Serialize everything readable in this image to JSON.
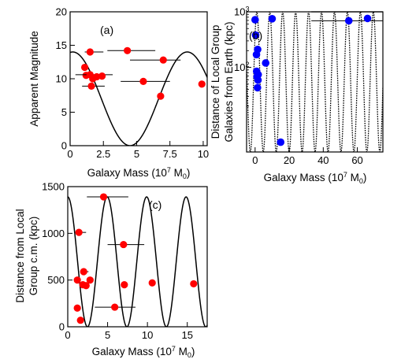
{
  "chart_data": [
    {
      "id": "a",
      "type": "scatter",
      "panel_label": "(a)",
      "xlabel_parts": [
        "Galaxy Mass (10",
        "7",
        " M",
        "0",
        ")"
      ],
      "ylabel": "Apparent Magnitude",
      "xlim": [
        0,
        10.3
      ],
      "ylim": [
        0,
        20
      ],
      "xticks": [
        0,
        2.5,
        5,
        7.5,
        10
      ],
      "xtick_labels": [
        "0",
        "2.5",
        "5",
        "7.5",
        "10"
      ],
      "yticks": [
        0,
        5,
        10,
        15,
        20
      ],
      "ytick_labels": [
        "0",
        "5",
        "10",
        "15",
        "20"
      ],
      "grid": false,
      "marker_color": "#ff0000",
      "curve_color": "#000000",
      "points": [
        {
          "x": 1.1,
          "y": 11.7
        },
        {
          "x": 1.2,
          "y": 10.5
        },
        {
          "x": 1.5,
          "y": 14.0,
          "xerr": [
            1.1,
            2.5
          ]
        },
        {
          "x": 1.5,
          "y": 10.6,
          "xerr": [
            0.4,
            3.2
          ]
        },
        {
          "x": 1.7,
          "y": 10.0
        },
        {
          "x": 1.6,
          "y": 8.9,
          "xerr": [
            0.9,
            2.6
          ]
        },
        {
          "x": 2.0,
          "y": 10.3
        },
        {
          "x": 2.4,
          "y": 10.4
        },
        {
          "x": 4.3,
          "y": 14.2,
          "xerr": [
            2.8,
            6.4
          ]
        },
        {
          "x": 5.5,
          "y": 9.6,
          "xerr": [
            3.8,
            7.5
          ]
        },
        {
          "x": 6.8,
          "y": 7.4
        },
        {
          "x": 7.0,
          "y": 12.8,
          "xerr": [
            4.5,
            8.3
          ]
        },
        {
          "x": 9.9,
          "y": 9.2
        }
      ],
      "curve": {
        "form": "cosine",
        "mean": 7.0,
        "amplitude": 7.0,
        "period": 8.6,
        "peak_x": 0.2
      }
    },
    {
      "id": "b",
      "type": "scatter",
      "panel_label": "(b)",
      "xlabel_parts": [
        "Galaxy Mass (10",
        "7",
        " M",
        "0",
        ")"
      ],
      "ylabel_lines": [
        "Distance of Local Group",
        "Galaxies from Earth (kpc)"
      ],
      "xlim": [
        -5,
        75
      ],
      "yscale": "log",
      "ylim": [
        3,
        1000
      ],
      "xticks": [
        0,
        20,
        40,
        60
      ],
      "xtick_labels": [
        "0",
        "20",
        "40",
        "60"
      ],
      "ytick_label_parts": [
        {
          "value": 100,
          "base": "10",
          "exp": "2"
        },
        {
          "value": 1000,
          "base": "10",
          "exp": "3"
        }
      ],
      "grid": false,
      "marker_color": "#0000ff",
      "curve_color": "#000000",
      "points": [
        {
          "x": 0.0,
          "y": 720
        },
        {
          "x": 0.3,
          "y": 380
        },
        {
          "x": 0.8,
          "y": 170
        },
        {
          "x": 1.5,
          "y": 210
        },
        {
          "x": 0.9,
          "y": 85
        },
        {
          "x": 1.8,
          "y": 74
        },
        {
          "x": 1.1,
          "y": 68
        },
        {
          "x": 1.7,
          "y": 59
        },
        {
          "x": 1.4,
          "y": 43
        },
        {
          "x": 6.2,
          "y": 120
        },
        {
          "x": 10.0,
          "y": 750
        },
        {
          "x": 15.0,
          "y": 4.5
        },
        {
          "x": 55.0,
          "y": 690,
          "xerr": [
            33,
            75
          ]
        },
        {
          "x": 66.0,
          "y": 760
        }
      ],
      "curve": {
        "form": "cosine",
        "ymin": 3.0,
        "ymax": 1000,
        "period": 7.6,
        "peak_x": 1.0,
        "dotted_below_x": 33
      }
    },
    {
      "id": "c",
      "type": "scatter",
      "panel_label": "(c)",
      "xlabel_parts": [
        "Galaxy Mass (10",
        "7",
        " M",
        "0",
        ")"
      ],
      "ylabel_lines": [
        "Distance from Local",
        "Group c.m. (kpc)"
      ],
      "xlim": [
        0,
        17.5
      ],
      "ylim": [
        0,
        1500
      ],
      "xticks": [
        0,
        5,
        10,
        15
      ],
      "xtick_labels": [
        "0",
        "5",
        "10",
        "15"
      ],
      "yticks": [
        0,
        500,
        1000,
        1500
      ],
      "ytick_labels": [
        "0",
        "500",
        "1000",
        "1500"
      ],
      "grid": false,
      "marker_color": "#ff0000",
      "curve_color": "#000000",
      "points": [
        {
          "x": 4.5,
          "y": 1390,
          "xerr": [
            2.4,
            7.6
          ]
        },
        {
          "x": 1.4,
          "y": 1010,
          "xerr": [
            1.4,
            2.3
          ]
        },
        {
          "x": 7.0,
          "y": 880,
          "xerr": [
            5.0,
            9.6
          ]
        },
        {
          "x": 2.0,
          "y": 590,
          "xerr": [
            1.7,
            2.6
          ]
        },
        {
          "x": 1.2,
          "y": 500
        },
        {
          "x": 2.8,
          "y": 500
        },
        {
          "x": 1.9,
          "y": 450
        },
        {
          "x": 2.3,
          "y": 440
        },
        {
          "x": 7.1,
          "y": 450
        },
        {
          "x": 10.6,
          "y": 470
        },
        {
          "x": 15.8,
          "y": 460
        },
        {
          "x": 1.2,
          "y": 200
        },
        {
          "x": 5.9,
          "y": 210,
          "xerr": [
            3.4,
            8.5
          ]
        },
        {
          "x": 1.6,
          "y": 70
        }
      ],
      "curve": {
        "form": "cosine",
        "ymin": 0,
        "ymax": 1390,
        "period": 4.95,
        "peak_x": 0.0
      }
    }
  ]
}
